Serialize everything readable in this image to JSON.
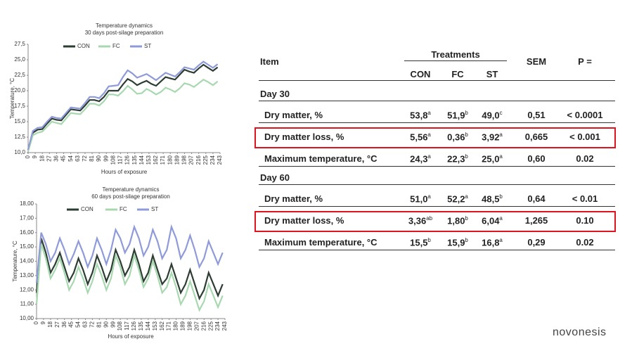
{
  "chart_data": [
    {
      "type": "line",
      "title": "Temperature dynamics",
      "subtitle": "30 days post-silage preparation",
      "xlabel": "Hours of exposure",
      "ylabel": "Temperature, °C",
      "x": [
        0,
        6,
        12,
        18,
        24,
        30,
        36,
        42,
        48,
        54,
        60,
        66,
        72,
        78,
        84,
        90,
        96,
        102,
        108,
        114,
        120,
        126,
        132,
        138,
        144,
        150,
        156,
        162,
        168,
        174,
        180,
        186,
        192,
        198,
        204,
        210,
        216,
        222,
        228,
        234,
        240
      ],
      "xlim": [
        0,
        243
      ],
      "xticks": [
        0,
        9,
        18,
        27,
        36,
        45,
        54,
        63,
        72,
        81,
        90,
        99,
        108,
        117,
        126,
        135,
        144,
        153,
        162,
        171,
        180,
        189,
        198,
        207,
        216,
        225,
        234,
        243
      ],
      "ylim": [
        10,
        27.5
      ],
      "yticks": [
        {
          "value": 10,
          "label": "10,0"
        },
        {
          "value": 12.5,
          "label": "12,5"
        },
        {
          "value": 15,
          "label": "15,0"
        },
        {
          "value": 17.5,
          "label": "17,5"
        },
        {
          "value": 20,
          "label": "20,0"
        },
        {
          "value": 22.5,
          "label": "22,5"
        },
        {
          "value": 25,
          "label": "25,0"
        },
        {
          "value": 27.5,
          "label": "27,5"
        }
      ],
      "series": [
        {
          "name": "CON",
          "color": "#2e3d33",
          "values": [
            10.4,
            13.2,
            13.7,
            13.8,
            14.7,
            15.5,
            15.3,
            15.2,
            16.1,
            17.0,
            16.9,
            16.8,
            17.6,
            18.5,
            18.5,
            18.3,
            19.0,
            20.0,
            20.0,
            20.0,
            21.0,
            21.9,
            21.5,
            20.9,
            21.3,
            21.6,
            21.1,
            20.8,
            21.5,
            22.2,
            22.0,
            21.8,
            22.6,
            23.4,
            23.1,
            22.9,
            23.6,
            24.2,
            23.7,
            23.2,
            23.8
          ]
        },
        {
          "name": "FC",
          "color": "#a8d8b0",
          "values": [
            10.2,
            12.8,
            13.2,
            13.4,
            14.2,
            15.0,
            14.8,
            14.6,
            15.5,
            16.4,
            16.3,
            16.2,
            17.0,
            17.9,
            17.9,
            17.6,
            18.3,
            19.4,
            19.4,
            19.2,
            19.9,
            20.8,
            20.2,
            19.5,
            19.6,
            20.3,
            19.9,
            19.4,
            19.8,
            20.5,
            20.2,
            19.8,
            20.4,
            21.2,
            21.0,
            20.6,
            21.2,
            21.8,
            21.4,
            20.9,
            21.5
          ]
        },
        {
          "name": "ST",
          "color": "#8f9bd8",
          "values": [
            10.5,
            13.5,
            14.0,
            14.1,
            15.0,
            15.8,
            15.6,
            15.5,
            16.4,
            17.3,
            17.2,
            17.1,
            18.0,
            19.0,
            19.0,
            18.8,
            19.6,
            20.7,
            20.8,
            20.9,
            22.2,
            23.3,
            22.8,
            22.1,
            22.4,
            22.7,
            22.2,
            21.7,
            22.3,
            22.9,
            22.6,
            22.3,
            23.0,
            23.8,
            23.6,
            23.4,
            24.1,
            24.7,
            24.2,
            23.7,
            24.3
          ]
        }
      ]
    },
    {
      "type": "line",
      "title": "Temperature dynamics",
      "subtitle": "60 days post-silage preparation",
      "xlabel": "Hours of exposure",
      "ylabel": "Temperature, °C",
      "x": [
        0,
        6,
        12,
        18,
        24,
        30,
        36,
        42,
        48,
        54,
        60,
        66,
        72,
        78,
        84,
        90,
        96,
        102,
        108,
        114,
        120,
        126,
        132,
        138,
        144,
        150,
        156,
        162,
        168,
        174,
        180,
        186,
        192,
        198,
        204,
        210,
        216,
        222,
        228,
        234,
        240
      ],
      "xlim": [
        0,
        243
      ],
      "xticks": [
        0,
        9,
        18,
        27,
        36,
        45,
        54,
        63,
        72,
        81,
        90,
        99,
        108,
        117,
        126,
        135,
        144,
        153,
        162,
        171,
        180,
        189,
        198,
        207,
        216,
        225,
        234,
        243
      ],
      "ylim": [
        10,
        18
      ],
      "yticks": [
        {
          "value": 10,
          "label": "10,00"
        },
        {
          "value": 11,
          "label": "11,00"
        },
        {
          "value": 12,
          "label": "12,00"
        },
        {
          "value": 13,
          "label": "13,00"
        },
        {
          "value": 14,
          "label": "14,00"
        },
        {
          "value": 15,
          "label": "15,00"
        },
        {
          "value": 16,
          "label": "16,00"
        },
        {
          "value": 17,
          "label": "17,00"
        },
        {
          "value": 18,
          "label": "18,00"
        }
      ],
      "series": [
        {
          "name": "CON",
          "color": "#2e3d33",
          "values": [
            11.8,
            15.6,
            14.6,
            13.2,
            13.8,
            14.6,
            13.6,
            12.6,
            13.2,
            14.2,
            13.4,
            12.4,
            13.2,
            14.4,
            13.6,
            12.6,
            13.4,
            14.8,
            14.0,
            13.0,
            13.6,
            14.8,
            13.8,
            12.6,
            13.2,
            14.4,
            13.4,
            12.4,
            12.8,
            13.8,
            12.8,
            11.8,
            12.4,
            13.4,
            12.4,
            11.4,
            12.0,
            13.2,
            12.4,
            11.6,
            12.4
          ]
        },
        {
          "name": "FC",
          "color": "#a8d8b0",
          "values": [
            11.0,
            15.2,
            14.2,
            12.8,
            13.4,
            14.2,
            13.2,
            12.0,
            12.6,
            13.6,
            12.8,
            11.8,
            12.6,
            13.8,
            13.0,
            12.0,
            12.8,
            14.4,
            13.6,
            12.4,
            13.0,
            14.4,
            13.4,
            12.2,
            12.8,
            14.0,
            13.0,
            11.8,
            12.2,
            13.2,
            12.2,
            11.0,
            11.6,
            12.6,
            11.6,
            10.6,
            11.2,
            12.4,
            11.6,
            10.8,
            11.6
          ]
        },
        {
          "name": "ST",
          "color": "#8f9bd8",
          "values": [
            12.5,
            16.0,
            15.2,
            14.0,
            14.6,
            15.6,
            14.8,
            13.8,
            14.5,
            15.4,
            14.6,
            13.6,
            14.4,
            15.6,
            14.8,
            13.8,
            14.8,
            16.2,
            15.6,
            14.6,
            15.2,
            16.4,
            15.6,
            14.4,
            15.0,
            16.2,
            15.4,
            14.2,
            14.8,
            16.4,
            15.6,
            14.2,
            14.8,
            15.8,
            14.8,
            13.6,
            14.2,
            15.4,
            14.6,
            13.8,
            14.6
          ]
        }
      ]
    }
  ],
  "table": {
    "header": {
      "item": "Item",
      "group": "Treatments",
      "columns": [
        "CON",
        "FC",
        "ST"
      ],
      "sem": "SEM",
      "p": "P ="
    },
    "sections": [
      {
        "title": "Day 30",
        "rows": [
          {
            "item": "Dry matter, %",
            "cells": [
              {
                "text": "53,8",
                "sup": "a"
              },
              {
                "text": "51,9",
                "sup": "b"
              },
              {
                "text": "49,0",
                "sup": "c"
              }
            ],
            "sem": "0,51",
            "p": "< 0.0001",
            "highlight": false
          },
          {
            "item": "Dry matter loss, %",
            "cells": [
              {
                "text": "5,56",
                "sup": "a"
              },
              {
                "text": "0,36",
                "sup": "b"
              },
              {
                "text": "3,92",
                "sup": "a"
              }
            ],
            "sem": "0,665",
            "p": "< 0.001",
            "highlight": true
          },
          {
            "item": "Maximum temperature, °C",
            "cells": [
              {
                "text": "24,3",
                "sup": "a"
              },
              {
                "text": "22,3",
                "sup": "b"
              },
              {
                "text": "25,0",
                "sup": "a"
              }
            ],
            "sem": "0,60",
            "p": "0.02",
            "highlight": false
          }
        ]
      },
      {
        "title": "Day 60",
        "rows": [
          {
            "item": "Dry matter, %",
            "cells": [
              {
                "text": "51,0",
                "sup": "a"
              },
              {
                "text": "52,2",
                "sup": "a"
              },
              {
                "text": "48,5",
                "sup": "b"
              }
            ],
            "sem": "0,64",
            "p": "< 0.01",
            "highlight": false
          },
          {
            "item": "Dry matter loss, %",
            "cells": [
              {
                "text": "3,36",
                "sup": "ab"
              },
              {
                "text": "1,80",
                "sup": "b"
              },
              {
                "text": "6,04",
                "sup": "a"
              }
            ],
            "sem": "1,265",
            "p": "0.10",
            "highlight": true
          },
          {
            "item": "Maximum temperature, °C",
            "cells": [
              {
                "text": "15,5",
                "sup": "b"
              },
              {
                "text": "15,9",
                "sup": "b"
              },
              {
                "text": "16,8",
                "sup": "a"
              }
            ],
            "sem": "0,29",
            "p": "0.02",
            "highlight": false
          }
        ]
      }
    ]
  },
  "footer": {
    "logo": "novonesis"
  }
}
